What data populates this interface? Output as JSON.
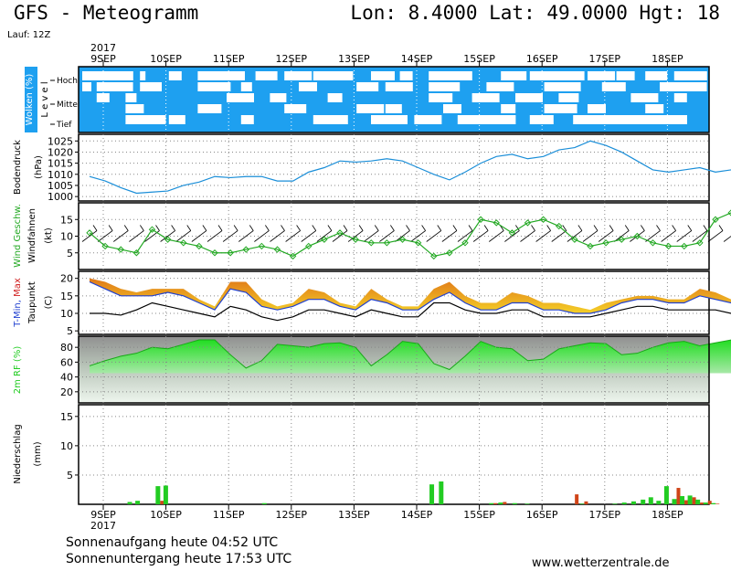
{
  "header": {
    "title": "GFS - Meteogramm",
    "location": "Lon: 8.4000  Lat: 49.0000  Hgt: 18",
    "run": "Lauf: 12Z"
  },
  "footer": {
    "sunrise": "Sonnenaufgang heute 04:52 UTC",
    "sunset": "Sonnenuntergang heute 17:53 UTC",
    "source": "www.wetterzentrale.de"
  },
  "colors": {
    "cloud_sky": "#1ea0f0",
    "pressure_line": "#1a8ed8",
    "wind_line": "#22a822",
    "temp_max_fill": "#e08a1e",
    "temp_min_fill": "#f0c020",
    "temp_line": "#2040d0",
    "dewpoint_line": "#000000",
    "rh_fill": "#22cc22",
    "precip_green": "#22cc22",
    "precip_red": "#d04418"
  },
  "chart_data": [
    {
      "type": "heatmap",
      "name": "clouds",
      "ylabel": "Wolken (%)",
      "ylabel2": "Level",
      "levels": [
        "Hoch",
        "Mittel",
        "Tief"
      ],
      "x_ticks": [
        "9SEP",
        "10SEP",
        "11SEP",
        "12SEP",
        "13SEP",
        "14SEP",
        "15SEP",
        "16SEP",
        "17SEP",
        "18SEP"
      ],
      "year": "2017",
      "grid": true
    },
    {
      "type": "line",
      "name": "pressure",
      "ylabel": "Bodendruck",
      "unit": "(hPa)",
      "ylim": [
        998,
        1028
      ],
      "yticks": [
        1000,
        1005,
        1010,
        1015,
        1020,
        1025
      ],
      "x": [
        0,
        0.5,
        1,
        1.5,
        2,
        2.5,
        3,
        3.5,
        4,
        4.5,
        5,
        5.5,
        6,
        6.5,
        7,
        7.5,
        8,
        8.5,
        9,
        9.5,
        10,
        10.5,
        11,
        11.5,
        12,
        12.5,
        13,
        13.5,
        14,
        14.5,
        15,
        15.5,
        16,
        16.5,
        17,
        17.5,
        18,
        18.5,
        19,
        19.5,
        20,
        20.5,
        21,
        21.5,
        22
      ],
      "values": [
        1009,
        1007,
        1004,
        1001.5,
        1002,
        1002.5,
        1005,
        1006.5,
        1009,
        1008.5,
        1009,
        1009,
        1007,
        1007,
        1011,
        1013,
        1016,
        1015.5,
        1016,
        1017,
        1016,
        1013,
        1010,
        1007.5,
        1011,
        1015,
        1018,
        1019,
        1017,
        1018,
        1021,
        1022,
        1025,
        1023,
        1020,
        1016,
        1012,
        1011,
        1012,
        1013,
        1011,
        1012,
        1012,
        1013,
        1016
      ]
    },
    {
      "type": "line",
      "name": "wind",
      "ylabel": "Wind Geschw.",
      "ylabel2": "Windfahnen",
      "unit": "(kt)",
      "ylim": [
        0,
        20
      ],
      "yticks": [
        5,
        10,
        15
      ],
      "x": [
        0,
        0.5,
        1,
        1.5,
        2,
        2.5,
        3,
        3.5,
        4,
        4.5,
        5,
        5.5,
        6,
        6.5,
        7,
        7.5,
        8,
        8.5,
        9,
        9.5,
        10,
        10.5,
        11,
        11.5,
        12,
        12.5,
        13,
        13.5,
        14,
        14.5,
        15,
        15.5,
        16,
        16.5,
        17,
        17.5,
        18,
        18.5,
        19,
        19.5,
        20,
        20.5,
        21,
        21.5,
        22
      ],
      "values": [
        11,
        7,
        6,
        5,
        12,
        9,
        8,
        7,
        5,
        5,
        6,
        7,
        6,
        4,
        7,
        9,
        11,
        9,
        8,
        8,
        9,
        8,
        4,
        5,
        8,
        15,
        14,
        11,
        14,
        15,
        13,
        9,
        7,
        8,
        9,
        10,
        8,
        7,
        7,
        8,
        15,
        17,
        14,
        11,
        10
      ]
    },
    {
      "type": "area",
      "name": "temperature",
      "ylabel": "T-Min, Max",
      "ylabel2": "Taupunkt",
      "unit": "(C)",
      "ylim": [
        4,
        22
      ],
      "yticks": [
        5,
        10,
        15,
        20
      ],
      "x": [
        0,
        0.5,
        1,
        1.5,
        2,
        2.5,
        3,
        3.5,
        4,
        4.5,
        5,
        5.5,
        6,
        6.5,
        7,
        7.5,
        8,
        8.5,
        9,
        9.5,
        10,
        10.5,
        11,
        11.5,
        12,
        12.5,
        13,
        13.5,
        14,
        14.5,
        15,
        15.5,
        16,
        16.5,
        17,
        17.5,
        18,
        18.5,
        19,
        19.5,
        20,
        20.5,
        21,
        21.5,
        22
      ],
      "series": [
        {
          "name": "Max",
          "values": [
            20,
            19,
            17,
            16,
            17,
            17,
            17,
            14,
            12,
            19,
            19,
            14,
            12,
            13,
            17,
            16,
            13,
            12,
            17,
            14,
            12,
            12,
            17,
            19,
            15,
            13,
            13,
            16,
            15,
            13,
            13,
            12,
            11,
            13,
            14,
            15,
            15,
            14,
            14,
            17,
            16,
            14,
            13,
            13,
            15
          ]
        },
        {
          "name": "T-Min",
          "values": [
            19,
            17,
            15,
            15,
            15,
            16,
            15,
            13,
            11,
            17,
            16,
            12,
            11,
            12,
            14,
            14,
            12,
            11,
            14,
            13,
            11,
            11,
            14,
            16,
            13,
            11,
            11,
            13,
            13,
            11,
            11,
            10,
            10,
            11,
            13,
            14,
            14,
            13,
            13,
            15,
            14,
            13,
            11,
            10,
            10
          ]
        },
        {
          "name": "Taupunkt",
          "values": [
            10,
            10,
            9.5,
            11,
            13,
            12,
            11,
            10,
            9,
            12,
            11,
            9,
            8,
            9,
            11,
            11,
            10,
            9,
            11,
            10,
            9,
            9,
            13,
            13,
            11,
            10,
            10,
            11,
            11,
            9,
            9,
            9,
            9,
            10,
            11,
            12,
            12,
            11,
            11,
            11,
            11,
            10,
            9,
            8,
            8
          ]
        }
      ]
    },
    {
      "type": "area",
      "name": "humidity",
      "ylabel": "2m RF (%)",
      "ylim": [
        5,
        95
      ],
      "yticks": [
        20,
        40,
        60,
        80
      ],
      "x": [
        0,
        0.5,
        1,
        1.5,
        2,
        2.5,
        3,
        3.5,
        4,
        4.5,
        5,
        5.5,
        6,
        6.5,
        7,
        7.5,
        8,
        8.5,
        9,
        9.5,
        10,
        10.5,
        11,
        11.5,
        12,
        12.5,
        13,
        13.5,
        14,
        14.5,
        15,
        15.5,
        16,
        16.5,
        17,
        17.5,
        18,
        18.5,
        19,
        19.5,
        20,
        20.5,
        21,
        21.5,
        22
      ],
      "values": [
        55,
        62,
        68,
        72,
        80,
        78,
        84,
        90,
        90,
        70,
        52,
        62,
        84,
        82,
        80,
        85,
        86,
        80,
        55,
        70,
        88,
        85,
        58,
        50,
        68,
        88,
        80,
        78,
        62,
        64,
        78,
        82,
        86,
        85,
        70,
        72,
        80,
        86,
        88,
        82,
        86,
        90,
        88,
        82,
        60
      ]
    },
    {
      "type": "bar",
      "name": "precipitation",
      "ylabel": "Niederschlag",
      "unit": "(mm)",
      "ylim": [
        0,
        17
      ],
      "yticks": [
        5,
        10,
        15
      ],
      "x_ticks": [
        "9SEP",
        "10SEP",
        "11SEP",
        "12SEP",
        "13SEP",
        "14SEP",
        "15SEP",
        "16SEP",
        "17SEP",
        "18SEP"
      ],
      "year": "2017",
      "x": [
        1.3,
        1.55,
        2.2,
        2.45,
        5.6,
        10.95,
        11.25,
        12.85,
        13.15,
        13.6,
        14.0,
        15.45,
        15.75,
        16.8,
        17.1,
        17.4,
        17.7,
        17.95,
        18.2,
        18.45,
        18.7,
        18.95,
        19.2,
        19.45,
        19.7,
        19.95,
        20.2,
        20.45,
        20.7,
        20.95,
        21.2
      ],
      "series": [
        {
          "name": "green",
          "values": [
            0.4,
            0.6,
            3.1,
            3.2,
            0.2,
            3.4,
            3.9,
            0.2,
            0.3,
            0.2,
            0.1,
            0,
            0.1,
            0.1,
            0.3,
            0.5,
            0.8,
            1.2,
            0.6,
            3.1,
            0.9,
            1.4,
            1.5,
            0.8,
            0.3,
            0.2,
            0,
            0,
            0,
            0,
            0
          ]
        },
        {
          "name": "red",
          "values": [
            0,
            0,
            0.6,
            0,
            0,
            0,
            0,
            0.2,
            0.4,
            0,
            0,
            1.7,
            0.5,
            0,
            0,
            0,
            0,
            0,
            0,
            0,
            2.8,
            0.7,
            1.2,
            0.3,
            0.6,
            0.1,
            0,
            0,
            0.2,
            0.1,
            0.4
          ]
        }
      ]
    }
  ]
}
